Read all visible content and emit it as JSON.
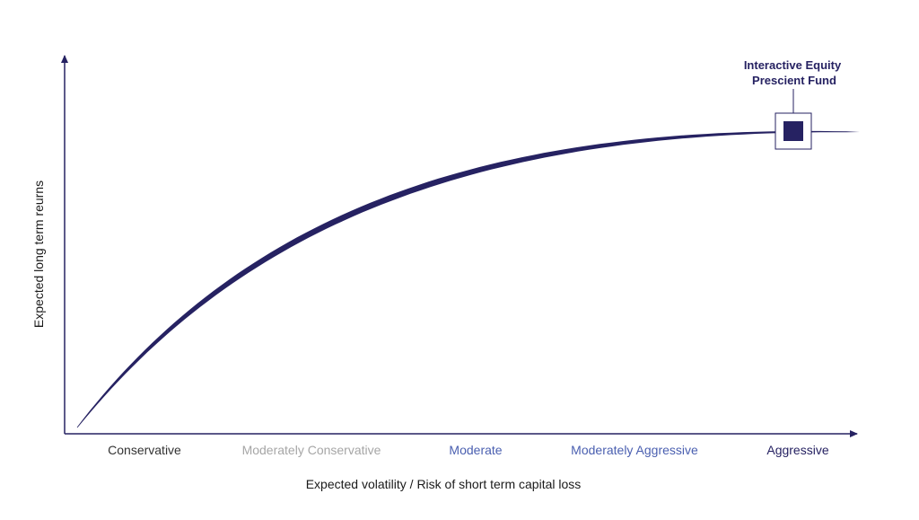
{
  "chart_data": {
    "type": "line",
    "title": "",
    "xlabel": "Expected volatility / Risk of short term capital loss",
    "ylabel": "Expected long term reurns",
    "categories": [
      "Conservative",
      "Moderately Conservative",
      "Moderate",
      "Moderately Aggressive",
      "Aggressive"
    ],
    "category_colors": [
      "#333333",
      "#a6a6a6",
      "#4a5fb0",
      "#4a5fb0",
      "#262262"
    ],
    "grid": false,
    "legend": "none",
    "curve_color": "#262262",
    "annotation": {
      "lines": [
        "Interactive Equity",
        "Prescient Fund"
      ],
      "color": "#262262",
      "category": "Aggressive"
    }
  }
}
